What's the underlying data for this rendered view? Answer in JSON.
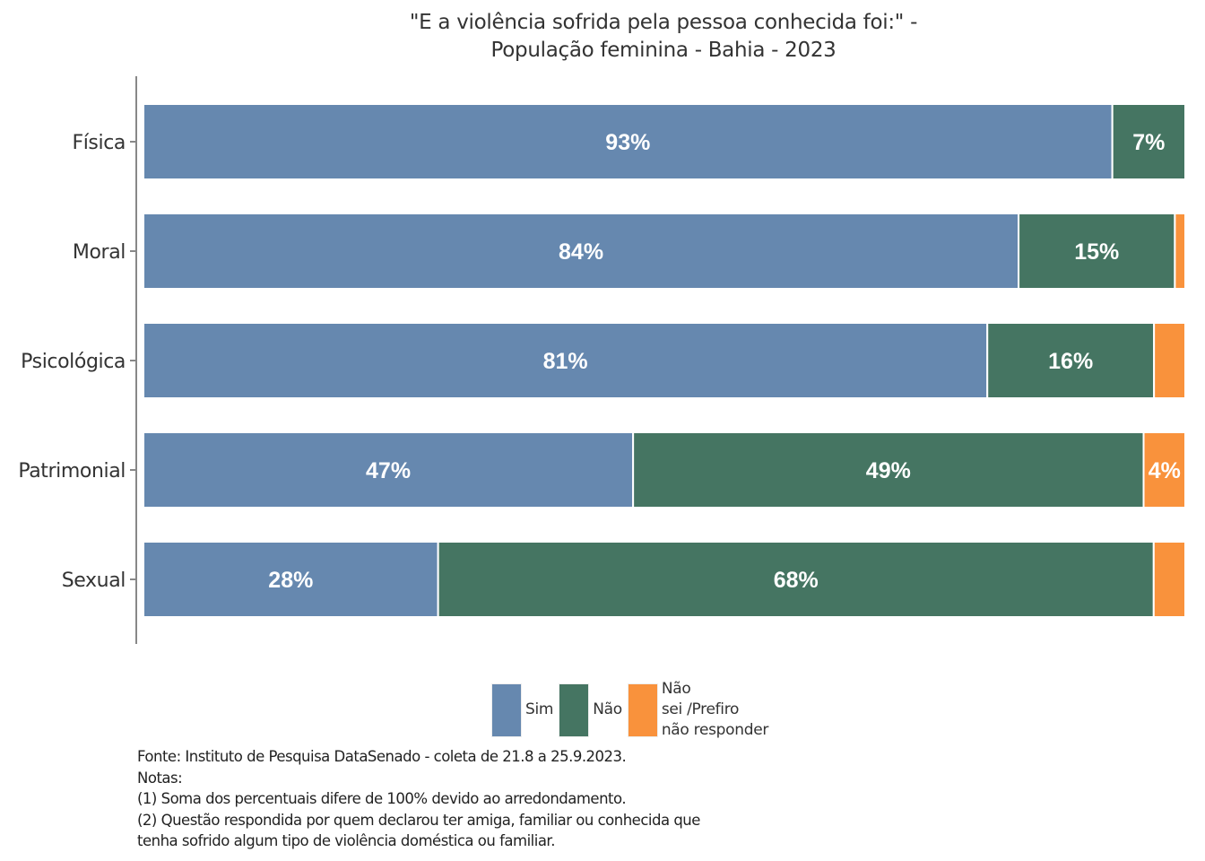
{
  "chart_data": {
    "type": "bar",
    "orientation": "horizontal",
    "stacked": true,
    "title": "\"E a violência sofrida pela pessoa conhecida foi:\" -",
    "subtitle": "População feminina - Bahia - 2023",
    "xlabel": "",
    "ylabel": "",
    "xlim": [
      0,
      100
    ],
    "grid": false,
    "categories": [
      "Física",
      "Moral",
      "Psicológica",
      "Patrimonial",
      "Sexual"
    ],
    "series": [
      {
        "name": "Sim",
        "color": "#6688AF",
        "values": [
          93,
          84,
          81,
          47,
          28
        ],
        "labels": [
          "93%",
          "84%",
          "81%",
          "47%",
          "28%"
        ]
      },
      {
        "name": "Não",
        "color": "#457562",
        "values": [
          7,
          15,
          16,
          49,
          68
        ],
        "labels": [
          "7%",
          "15%",
          "16%",
          "49%",
          "68%"
        ]
      },
      {
        "name": "Não sei /Prefiro não responder",
        "color": "#F9923C",
        "values": [
          0,
          1,
          3,
          4,
          3
        ],
        "labels": [
          "",
          "",
          "",
          "4%",
          ""
        ]
      }
    ],
    "legend": {
      "position": "bottom",
      "items": [
        {
          "label_lines": [
            "Sim"
          ],
          "color": "#6688AF"
        },
        {
          "label_lines": [
            "Não"
          ],
          "color": "#457562"
        },
        {
          "label_lines": [
            "Não",
            "sei /Prefiro",
            "não responder"
          ],
          "color": "#F9923C"
        }
      ]
    }
  },
  "notes": {
    "source": "Fonte: Instituto de Pesquisa DataSenado - coleta de 21.8 a 25.9.2023.",
    "heading": "Notas:",
    "note1": "(1) Soma dos percentuais difere de 100% devido ao arredondamento.",
    "note2_line1": "(2) Questão respondida por quem declarou ter amiga, familiar ou conhecida que",
    "note2_line2": "tenha sofrido algum tipo de violência doméstica ou familiar."
  }
}
